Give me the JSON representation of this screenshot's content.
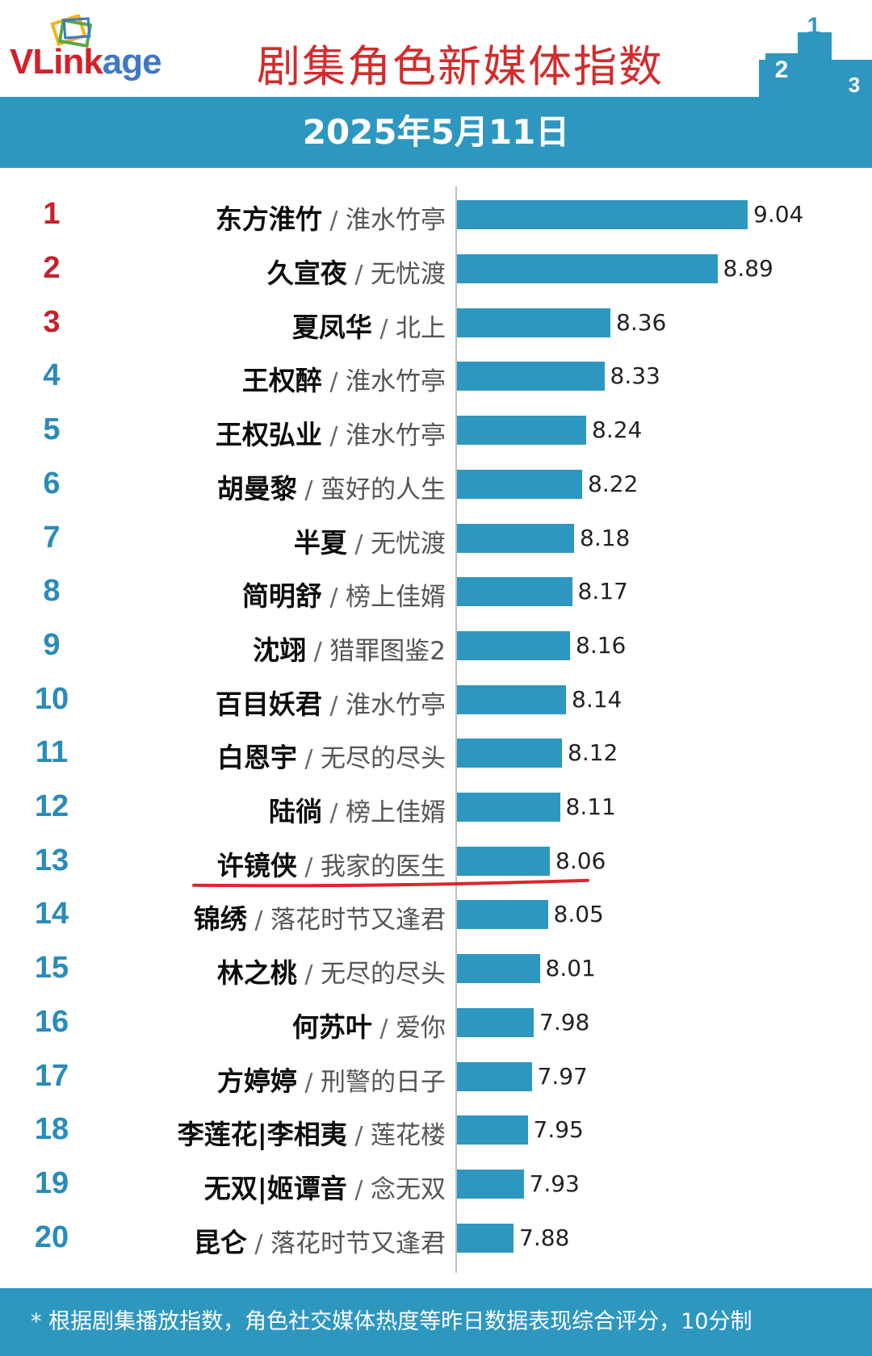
{
  "header": {
    "logo_text": "VLinkage",
    "title": "剧集角色新媒体指数",
    "podium_numbers": [
      "2",
      "1",
      "3"
    ]
  },
  "date": "2025年5月11日",
  "footer": {
    "note": "* 根据剧集播放指数，角色社交媒体热度等昨日数据表现综合评分，10分制"
  },
  "colors": {
    "bar": "#2e97c0",
    "rank_top3": "#c8202b",
    "rank_other": "#2a8bb8",
    "underline": "#e0242c",
    "title": "#d42b2b"
  },
  "chart_data": {
    "type": "bar",
    "orientation": "horizontal",
    "title": "剧集角色新媒体指数",
    "subtitle": "2025年5月11日",
    "highlighted_rank": 13,
    "items": [
      {
        "rank": "1",
        "character": "东方淮竹",
        "drama": "淮水竹亭",
        "value": 9.04
      },
      {
        "rank": "2",
        "character": "久宣夜",
        "drama": "无忧渡",
        "value": 8.89
      },
      {
        "rank": "3",
        "character": "夏凤华",
        "drama": "北上",
        "value": 8.36
      },
      {
        "rank": "4",
        "character": "王权醉",
        "drama": "淮水竹亭",
        "value": 8.33
      },
      {
        "rank": "5",
        "character": "王权弘业",
        "drama": "淮水竹亭",
        "value": 8.24
      },
      {
        "rank": "6",
        "character": "胡曼黎",
        "drama": "蛮好的人生",
        "value": 8.22
      },
      {
        "rank": "7",
        "character": "半夏",
        "drama": "无忧渡",
        "value": 8.18
      },
      {
        "rank": "8",
        "character": "简明舒",
        "drama": "榜上佳婿",
        "value": 8.17
      },
      {
        "rank": "9",
        "character": "沈翊",
        "drama": "猎罪图鉴2",
        "value": 8.16
      },
      {
        "rank": "10",
        "character": "百目妖君",
        "drama": "淮水竹亭",
        "value": 8.14
      },
      {
        "rank": "11",
        "character": "白恩宇",
        "drama": "无尽的尽头",
        "value": 8.12
      },
      {
        "rank": "12",
        "character": "陆徜",
        "drama": "榜上佳婿",
        "value": 8.11
      },
      {
        "rank": "13",
        "character": "许镜侠",
        "drama": "我家的医生",
        "value": 8.06
      },
      {
        "rank": "14",
        "character": "锦绣",
        "drama": "落花时节又逢君",
        "value": 8.05
      },
      {
        "rank": "15",
        "character": "林之桃",
        "drama": "无尽的尽头",
        "value": 8.01
      },
      {
        "rank": "16",
        "character": "何苏叶",
        "drama": "爱你",
        "value": 7.98
      },
      {
        "rank": "17",
        "character": "方婷婷",
        "drama": "刑警的日子",
        "value": 7.97
      },
      {
        "rank": "18",
        "character": "李莲花|李相夷",
        "drama": "莲花楼",
        "value": 7.95
      },
      {
        "rank": "19",
        "character": "无双|姬谭音",
        "drama": "念无双",
        "value": 7.93
      },
      {
        "rank": "20",
        "character": "昆仑",
        "drama": "落花时节又逢君",
        "value": 7.88
      }
    ]
  }
}
